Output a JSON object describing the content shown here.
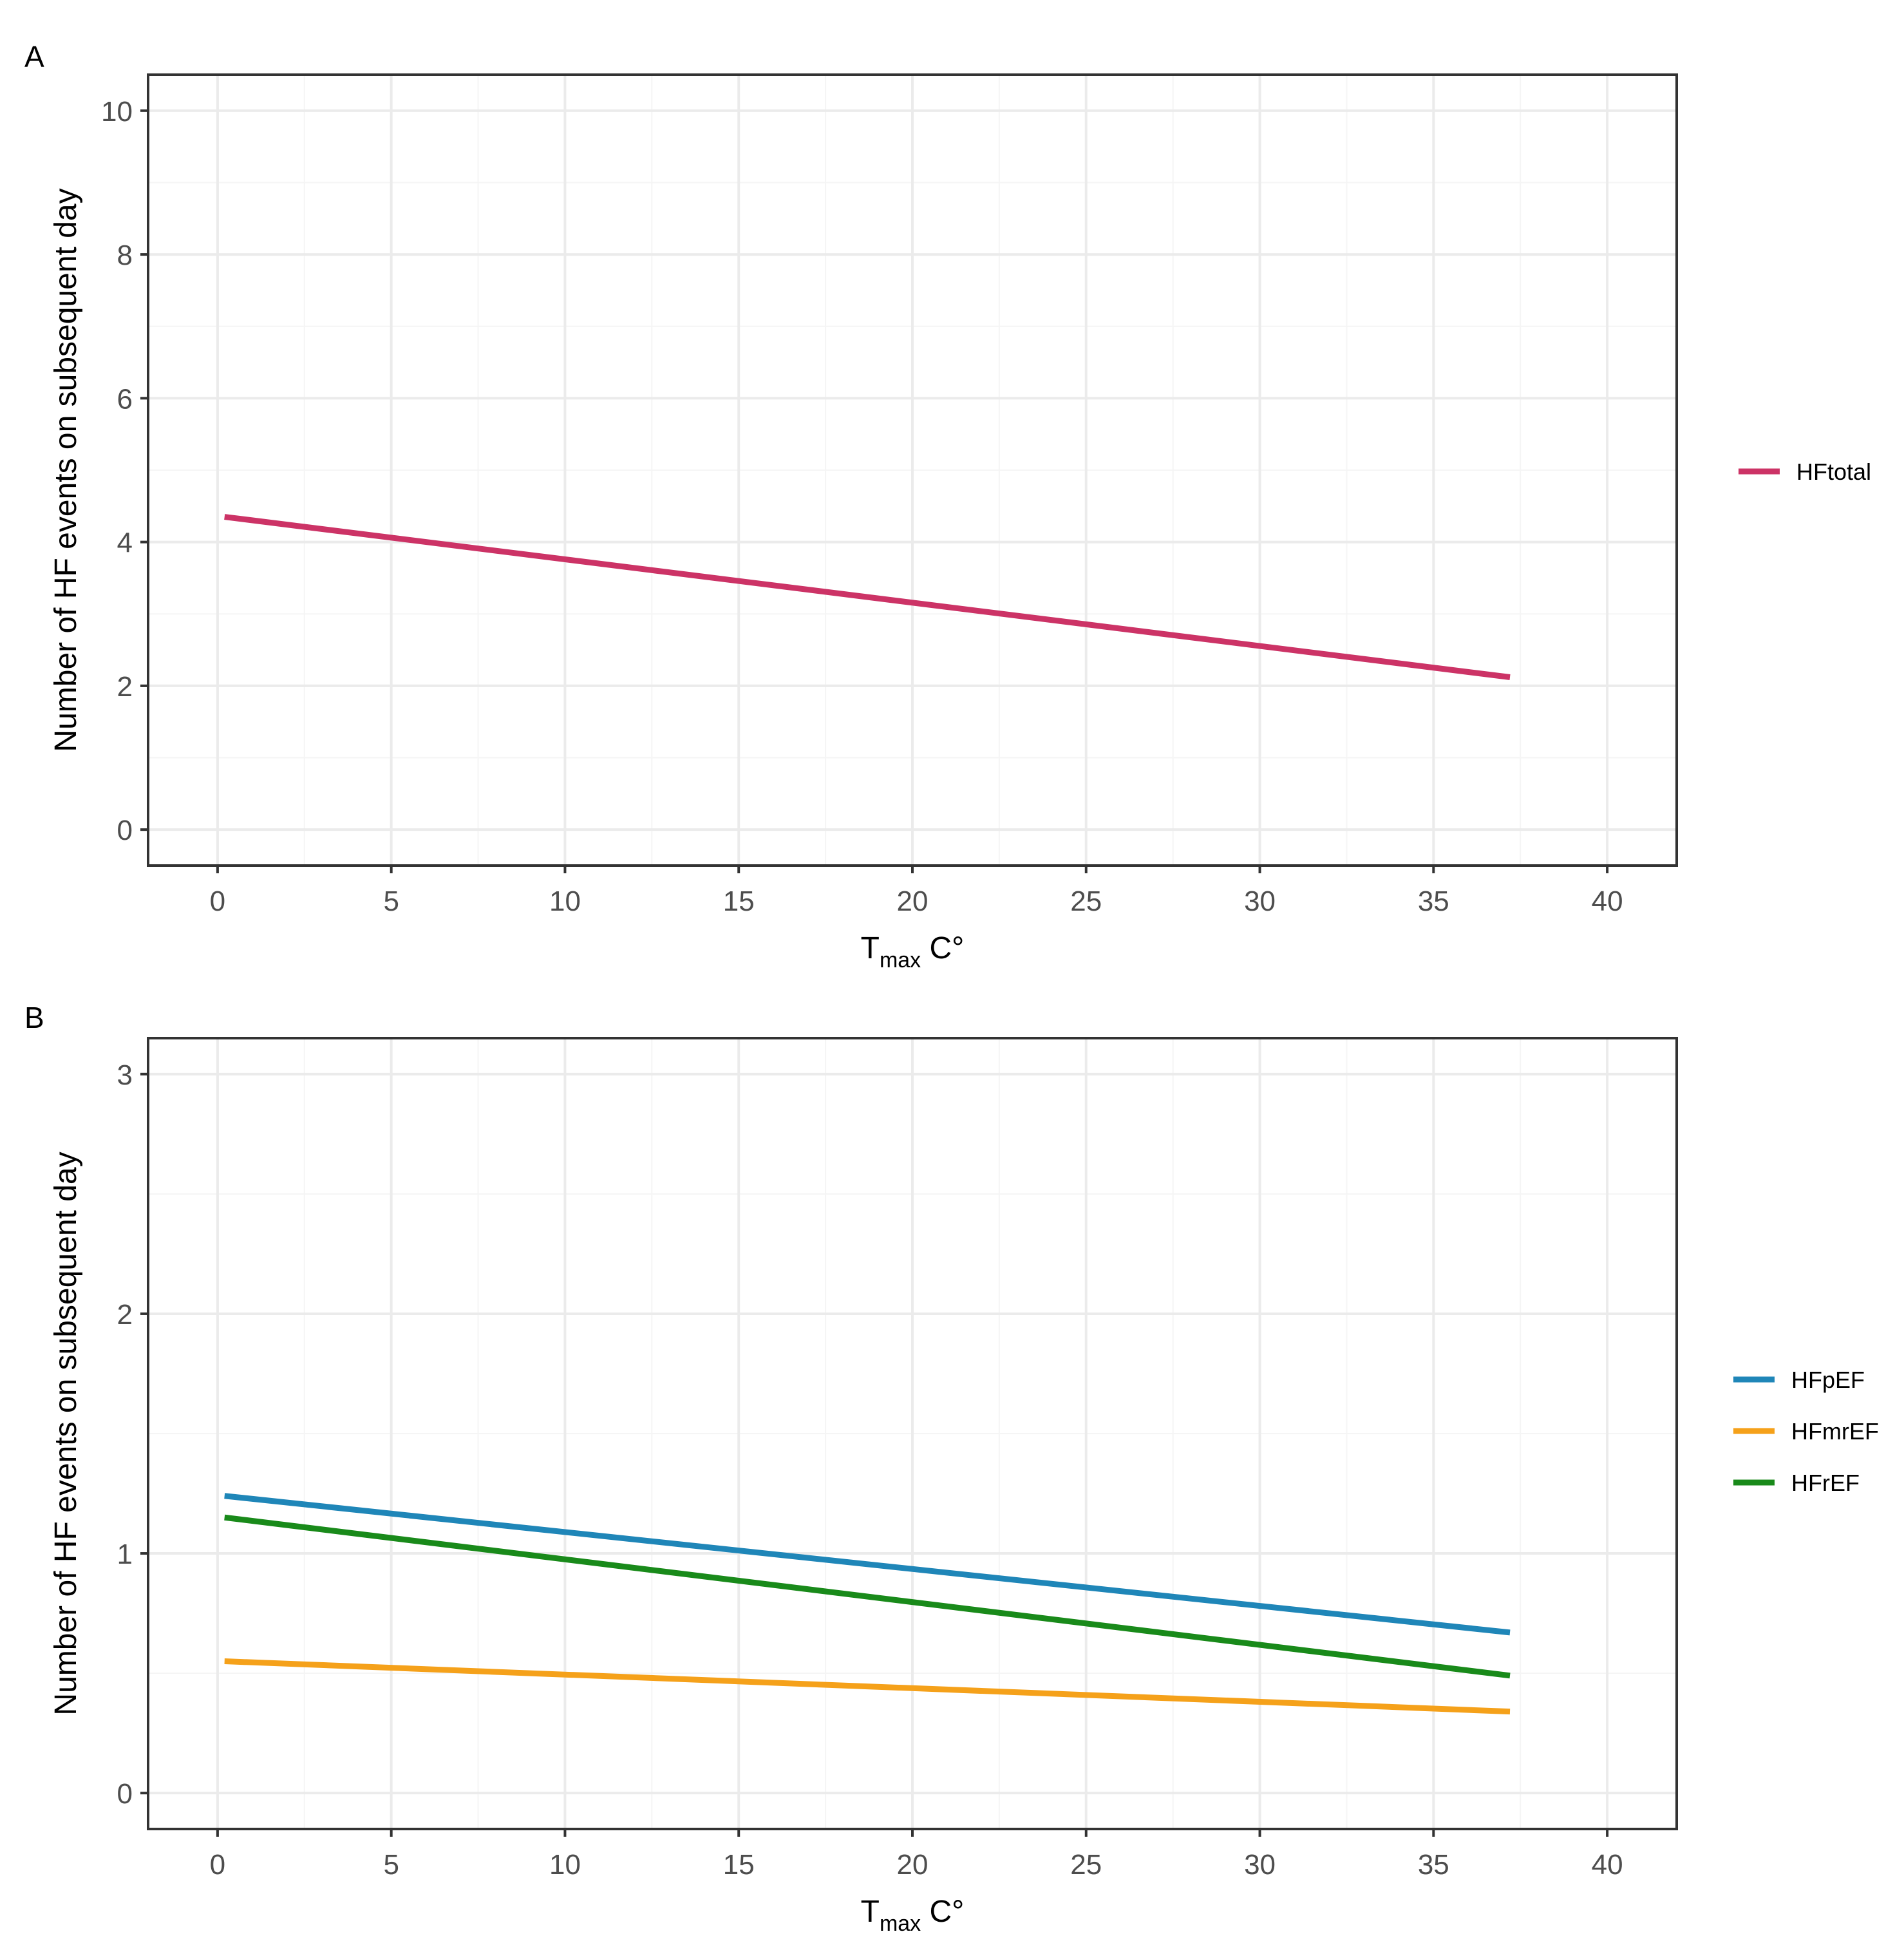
{
  "colors": {
    "HFtotal": "#cc3366",
    "HFpEF": "#1f86b8",
    "HFmrEF": "#f5a11a",
    "HFrEF": "#198a1a",
    "grid_major": "#ebebeb",
    "grid_minor": "#f5f5f5",
    "panel_border": "#333333",
    "tick_text": "#4d4d4d"
  },
  "chart_data": [
    {
      "panel": "A",
      "type": "line",
      "title": "",
      "xlabel": "T",
      "xlabel_sub": "max",
      "xlabel_suffix": " C°",
      "ylabel": "Number of HF events on subsequent day",
      "xlim": [
        -2,
        42
      ],
      "ylim": [
        -0.5,
        10.5
      ],
      "x_ticks": [
        0,
        5,
        10,
        15,
        20,
        25,
        30,
        35,
        40
      ],
      "x_tick_labels": [
        "0",
        "5",
        "10",
        "15",
        "20",
        "25",
        "30",
        "35",
        "40"
      ],
      "y_ticks": [
        0,
        2,
        4,
        6,
        8,
        10
      ],
      "y_tick_labels": [
        "0",
        "2",
        "4",
        "6",
        "8",
        "10"
      ],
      "grid": true,
      "legend_position": "right",
      "series": [
        {
          "name": "HFtotal",
          "x": [
            0.2,
            37.2
          ],
          "values": [
            4.35,
            2.12
          ]
        }
      ]
    },
    {
      "panel": "B",
      "type": "line",
      "title": "",
      "xlabel": "T",
      "xlabel_sub": "max",
      "xlabel_suffix": " C°",
      "ylabel": "Number of HF events on subsequent day",
      "xlim": [
        -2,
        42
      ],
      "ylim": [
        -0.15,
        3.15
      ],
      "x_ticks": [
        0,
        5,
        10,
        15,
        20,
        25,
        30,
        35,
        40
      ],
      "x_tick_labels": [
        "0",
        "5",
        "10",
        "15",
        "20",
        "25",
        "30",
        "35",
        "40"
      ],
      "y_ticks": [
        0,
        1,
        2,
        3
      ],
      "y_tick_labels": [
        "0",
        "1",
        "2",
        "3"
      ],
      "grid": true,
      "legend_position": "right",
      "series": [
        {
          "name": "HFpEF",
          "x": [
            0.2,
            37.2
          ],
          "values": [
            1.24,
            0.67
          ]
        },
        {
          "name": "HFmrEF",
          "x": [
            0.2,
            37.2
          ],
          "values": [
            0.55,
            0.34
          ]
        },
        {
          "name": "HFrEF",
          "x": [
            0.2,
            37.2
          ],
          "values": [
            1.15,
            0.49
          ]
        }
      ]
    }
  ]
}
